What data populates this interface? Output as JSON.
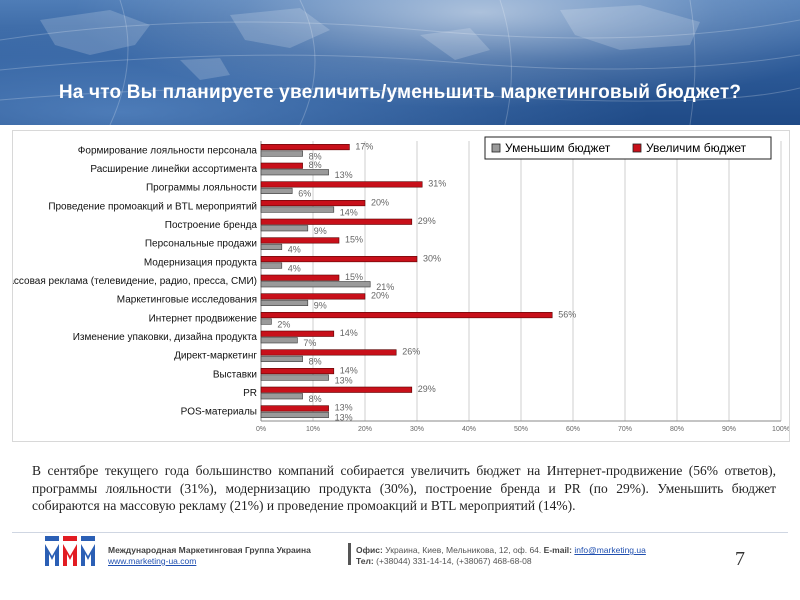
{
  "slide": {
    "title": "На что Вы планируете увеличить/уменьшить маркетинговый бюджет?",
    "summary": "В сентябре текущего года большинство компаний собирается увеличить бюджет на Интернет-продвижение (56% ответов), программы лояльности (31%), модернизацию продукта (30%), построение бренда и PR (по 29%). Уменьшить бюджет собираются на массовую рекламу (21%) и проведение промоакций и BTL мероприятий (14%).",
    "page_number": "7"
  },
  "footer": {
    "org_name": "Международная Маркетинговая Группа Украина",
    "org_url": "www.marketing-ua.com",
    "office_label": "Офис:",
    "office": "Украина, Киев, Мельникова, 12, оф. 64.",
    "email_label": "E-mail:",
    "email": "info@marketing.ua",
    "phone_label": "Тел:",
    "phone": "(+38044) 331-14-14, (+38067) 468-68-08"
  },
  "colors": {
    "increase": "#c8101a",
    "decrease": "#8a8a8a",
    "banner": "#2f5d9b",
    "title_text": "#ffffff"
  },
  "chart_data": {
    "type": "bar",
    "orientation": "horizontal",
    "categories": [
      "Формирование лояльности персонала",
      "Расширение линейки ассортимента",
      "Программы лояльности",
      "Проведение промоакций и BTL мероприятий",
      "Построение бренда",
      "Персональные продажи",
      "Модернизация продукта",
      "Массовая реклама (телевидение, радио, пресса, СМИ)",
      "Маркетинговые исследования",
      "Интернет продвижение",
      "Изменение упаковки, дизайна продукта",
      "Директ-маркетинг",
      "Выставки",
      "PR",
      "POS-материалы"
    ],
    "series": [
      {
        "name": "Увеличим бюджет",
        "values": [
          17,
          8,
          31,
          20,
          29,
          15,
          30,
          15,
          20,
          56,
          14,
          26,
          14,
          29,
          13
        ]
      },
      {
        "name": "Уменьшим бюджет",
        "values": [
          8,
          13,
          6,
          14,
          9,
          4,
          4,
          21,
          9,
          2,
          7,
          8,
          13,
          8,
          13
        ]
      }
    ],
    "xlim": [
      0,
      100
    ],
    "x_ticks": [
      "0%",
      "10%",
      "20%",
      "30%",
      "40%",
      "50%",
      "60%",
      "70%",
      "80%",
      "90%",
      "100%"
    ],
    "value_suffix": "%",
    "legend": [
      "Уменьшим бюджет",
      "Увеличим бюджет"
    ],
    "legend_position": "top-right",
    "grid": true
  }
}
